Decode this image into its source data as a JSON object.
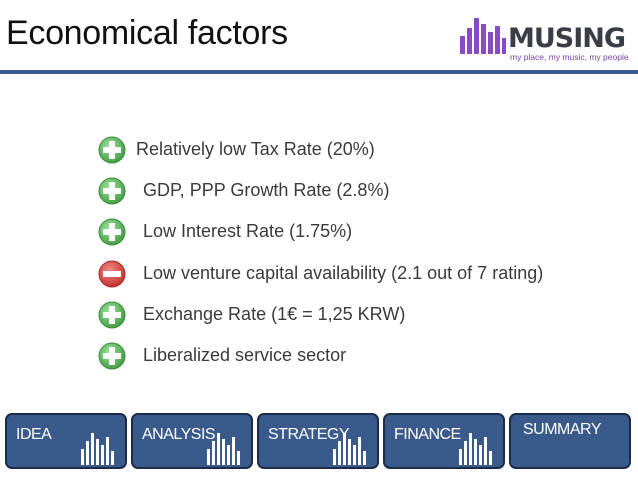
{
  "slide": {
    "title": "Economical factors"
  },
  "logo": {
    "name": "MUSING",
    "tagline": "my place, my music, my people",
    "bar_color": "#8a4cc4"
  },
  "factors": [
    {
      "label": "Relatively low Tax Rate (20%)",
      "sign": "plus"
    },
    {
      "label": "GDP, PPP Growth Rate (2.8%)",
      "sign": "plus"
    },
    {
      "label": "Low Interest Rate (1.75%)",
      "sign": "plus"
    },
    {
      "label": "Low venture capital availability (2.1 out of 7 rating)",
      "sign": "minus"
    },
    {
      "label": "Exchange Rate (1€ = 1,25 KRW)",
      "sign": "plus"
    },
    {
      "label": "Liberalized service sector",
      "sign": "plus"
    }
  ],
  "tabs": [
    {
      "label": "IDEA"
    },
    {
      "label": "ANALYSIS"
    },
    {
      "label": "STRATEGY"
    },
    {
      "label": "FINANCE"
    },
    {
      "label": "SUMMARY"
    }
  ],
  "colors": {
    "plus": "#5cb85c",
    "minus": "#d43f3a",
    "tab_fill": "#3a5a8c",
    "rule": "#3c5a8c"
  }
}
